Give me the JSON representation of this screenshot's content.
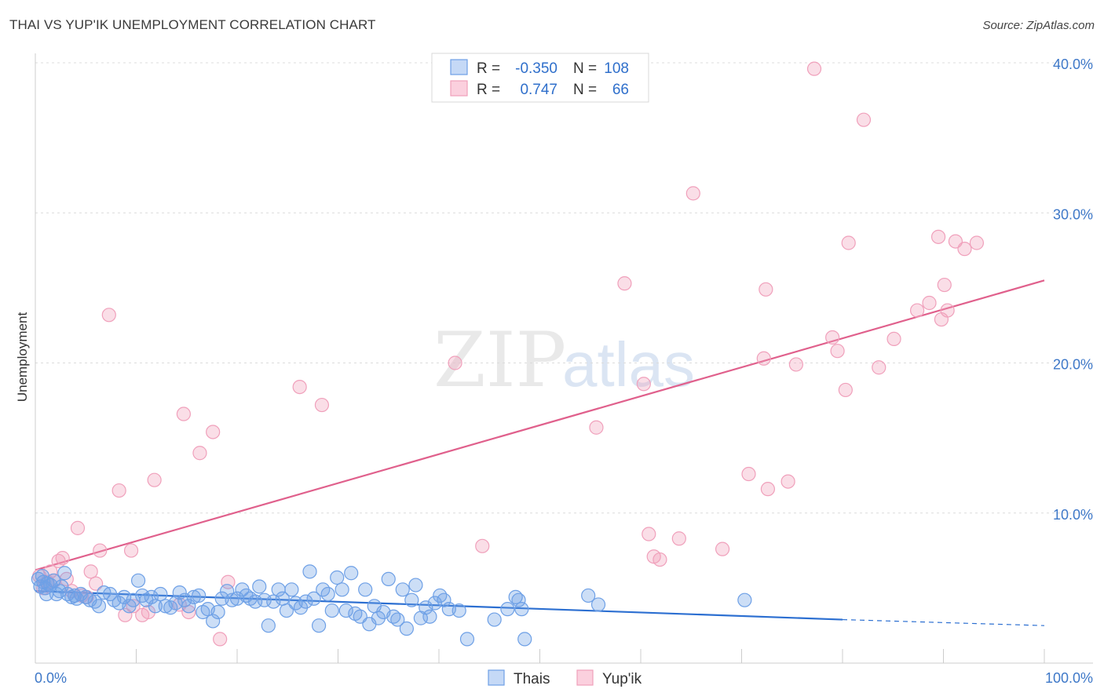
{
  "header": {
    "title": "THAI VS YUP'IK UNEMPLOYMENT CORRELATION CHART",
    "source": "Source: ZipAtlas.com"
  },
  "watermark": {
    "zip": "ZIP",
    "atlas": "atlas"
  },
  "legend": {
    "rows": [
      {
        "r_label": "R =",
        "r_value": "-0.350",
        "n_label": "N =",
        "n_value": "108"
      },
      {
        "r_label": "R =",
        "r_value": "0.747",
        "n_label": "N =",
        "n_value": "66"
      }
    ]
  },
  "chart_data": {
    "type": "scatter",
    "title": "THAI VS YUP'IK UNEMPLOYMENT CORRELATION CHART",
    "xlabel": "",
    "ylabel": "Unemployment",
    "xlim": [
      0,
      100
    ],
    "ylim": [
      0,
      40
    ],
    "x_tick_labels": [
      "0.0%",
      "100.0%"
    ],
    "y_ticks": [
      10,
      20,
      30,
      40
    ],
    "y_tick_labels": [
      "10.0%",
      "20.0%",
      "30.0%",
      "40.0%"
    ],
    "grid": true,
    "legend_position": "top-center",
    "colors": {
      "thais": "#6ea0e6",
      "thais_line": "#2c6fd1",
      "yupik": "#f0a0bb",
      "yupik_line": "#e0608c",
      "tick": "#3e78c8"
    },
    "series": [
      {
        "name": "Thais",
        "r": -0.35,
        "n": 108,
        "trend": {
          "x0": 0,
          "y0": 4.8,
          "x1": 80,
          "y1": 2.9,
          "dashed_to": 100,
          "dashed_y": 2.5
        },
        "points": [
          [
            0.3,
            5.6
          ],
          [
            0.5,
            5.1
          ],
          [
            0.8,
            5.4
          ],
          [
            1.0,
            5.0
          ],
          [
            1.2,
            5.3
          ],
          [
            1.5,
            5.2
          ],
          [
            1.8,
            5.5
          ],
          [
            2.1,
            4.6
          ],
          [
            2.4,
            4.8
          ],
          [
            2.9,
            6.0
          ],
          [
            3.2,
            4.6
          ],
          [
            3.6,
            4.4
          ],
          [
            4.1,
            4.3
          ],
          [
            4.5,
            4.6
          ],
          [
            5.0,
            4.4
          ],
          [
            5.4,
            4.2
          ],
          [
            5.9,
            4.1
          ],
          [
            6.3,
            3.8
          ],
          [
            6.8,
            4.7
          ],
          [
            7.4,
            4.6
          ],
          [
            7.8,
            4.2
          ],
          [
            8.3,
            4.0
          ],
          [
            8.8,
            4.4
          ],
          [
            9.3,
            3.8
          ],
          [
            9.7,
            4.2
          ],
          [
            10.2,
            5.5
          ],
          [
            10.6,
            4.5
          ],
          [
            11.0,
            4.2
          ],
          [
            11.5,
            4.4
          ],
          [
            11.9,
            3.8
          ],
          [
            12.4,
            4.6
          ],
          [
            12.9,
            3.8
          ],
          [
            13.4,
            3.7
          ],
          [
            13.9,
            4.0
          ],
          [
            14.3,
            4.7
          ],
          [
            14.8,
            4.2
          ],
          [
            15.2,
            3.8
          ],
          [
            15.7,
            4.4
          ],
          [
            16.2,
            4.5
          ],
          [
            16.6,
            3.4
          ],
          [
            17.1,
            3.6
          ],
          [
            17.6,
            2.8
          ],
          [
            18.1,
            3.4
          ],
          [
            18.5,
            4.3
          ],
          [
            19.0,
            4.8
          ],
          [
            19.5,
            4.2
          ],
          [
            20.0,
            4.3
          ],
          [
            20.5,
            4.9
          ],
          [
            20.9,
            4.5
          ],
          [
            21.3,
            4.3
          ],
          [
            21.8,
            4.1
          ],
          [
            22.2,
            5.1
          ],
          [
            22.7,
            4.2
          ],
          [
            23.1,
            2.5
          ],
          [
            23.6,
            4.1
          ],
          [
            24.1,
            4.9
          ],
          [
            24.5,
            4.3
          ],
          [
            24.9,
            3.5
          ],
          [
            25.4,
            4.9
          ],
          [
            25.8,
            4.0
          ],
          [
            26.3,
            3.7
          ],
          [
            26.8,
            4.1
          ],
          [
            27.2,
            6.1
          ],
          [
            27.6,
            4.3
          ],
          [
            28.1,
            2.5
          ],
          [
            28.5,
            4.9
          ],
          [
            29.0,
            4.6
          ],
          [
            29.4,
            3.5
          ],
          [
            29.9,
            5.7
          ],
          [
            30.4,
            4.9
          ],
          [
            30.8,
            3.5
          ],
          [
            31.3,
            6.0
          ],
          [
            31.7,
            3.3
          ],
          [
            32.2,
            3.1
          ],
          [
            32.7,
            4.9
          ],
          [
            33.1,
            2.6
          ],
          [
            33.6,
            3.8
          ],
          [
            34.0,
            3.0
          ],
          [
            34.5,
            3.4
          ],
          [
            35.0,
            5.6
          ],
          [
            35.5,
            3.1
          ],
          [
            35.9,
            2.9
          ],
          [
            36.4,
            4.9
          ],
          [
            36.8,
            2.3
          ],
          [
            37.3,
            4.2
          ],
          [
            37.7,
            5.2
          ],
          [
            38.2,
            3.0
          ],
          [
            38.7,
            3.7
          ],
          [
            39.1,
            3.1
          ],
          [
            39.6,
            4.0
          ],
          [
            40.1,
            4.5
          ],
          [
            40.5,
            4.2
          ],
          [
            41.0,
            3.6
          ],
          [
            42.0,
            3.5
          ],
          [
            42.8,
            1.6
          ],
          [
            45.5,
            2.9
          ],
          [
            46.8,
            3.6
          ],
          [
            47.6,
            4.4
          ],
          [
            47.9,
            4.2
          ],
          [
            48.2,
            3.6
          ],
          [
            48.5,
            1.6
          ],
          [
            54.8,
            4.5
          ],
          [
            55.8,
            3.9
          ],
          [
            70.3,
            4.2
          ],
          [
            1.1,
            4.6
          ],
          [
            2.6,
            5.1
          ],
          [
            0.7,
            5.8
          ],
          [
            3.9,
            4.5
          ]
        ]
      },
      {
        "name": "Yup'ik",
        "r": 0.747,
        "n": 66,
        "trend": {
          "x0": 0,
          "y0": 6.2,
          "x1": 100,
          "y1": 25.5
        },
        "points": [
          [
            0.4,
            5.8
          ],
          [
            0.8,
            5.0
          ],
          [
            1.2,
            5.4
          ],
          [
            1.5,
            6.1
          ],
          [
            1.9,
            5.5
          ],
          [
            2.3,
            6.8
          ],
          [
            2.7,
            7.0
          ],
          [
            3.1,
            5.6
          ],
          [
            3.6,
            4.8
          ],
          [
            4.2,
            9.0
          ],
          [
            4.6,
            4.5
          ],
          [
            5.1,
            4.4
          ],
          [
            5.5,
            6.1
          ],
          [
            6.0,
            5.3
          ],
          [
            6.4,
            7.5
          ],
          [
            7.3,
            23.2
          ],
          [
            8.3,
            11.5
          ],
          [
            8.9,
            3.2
          ],
          [
            9.5,
            7.5
          ],
          [
            9.7,
            3.8
          ],
          [
            10.6,
            3.2
          ],
          [
            11.2,
            3.4
          ],
          [
            11.8,
            12.2
          ],
          [
            14.3,
            3.9
          ],
          [
            14.7,
            16.6
          ],
          [
            15.2,
            3.4
          ],
          [
            16.3,
            14.0
          ],
          [
            17.6,
            15.4
          ],
          [
            18.3,
            1.6
          ],
          [
            19.1,
            5.4
          ],
          [
            26.2,
            18.4
          ],
          [
            28.4,
            17.2
          ],
          [
            41.6,
            20.0
          ],
          [
            44.3,
            7.8
          ],
          [
            55.6,
            15.7
          ],
          [
            58.4,
            25.3
          ],
          [
            60.3,
            18.6
          ],
          [
            60.8,
            8.6
          ],
          [
            61.3,
            7.1
          ],
          [
            61.9,
            6.9
          ],
          [
            63.8,
            8.3
          ],
          [
            65.2,
            31.3
          ],
          [
            68.1,
            7.6
          ],
          [
            70.7,
            12.6
          ],
          [
            72.2,
            20.3
          ],
          [
            72.4,
            24.9
          ],
          [
            72.6,
            11.6
          ],
          [
            74.6,
            12.1
          ],
          [
            75.4,
            19.9
          ],
          [
            77.2,
            39.6
          ],
          [
            79.0,
            21.7
          ],
          [
            79.5,
            20.8
          ],
          [
            80.3,
            18.2
          ],
          [
            80.6,
            28.0
          ],
          [
            82.1,
            36.2
          ],
          [
            83.6,
            19.7
          ],
          [
            85.1,
            21.6
          ],
          [
            87.4,
            23.5
          ],
          [
            88.6,
            24.0
          ],
          [
            89.5,
            28.4
          ],
          [
            89.8,
            22.9
          ],
          [
            90.1,
            25.2
          ],
          [
            90.4,
            23.5
          ],
          [
            91.2,
            28.1
          ],
          [
            92.1,
            27.6
          ],
          [
            93.3,
            28.0
          ]
        ]
      }
    ]
  },
  "bottom_legend": {
    "items": [
      "Thais",
      "Yup'ik"
    ]
  }
}
